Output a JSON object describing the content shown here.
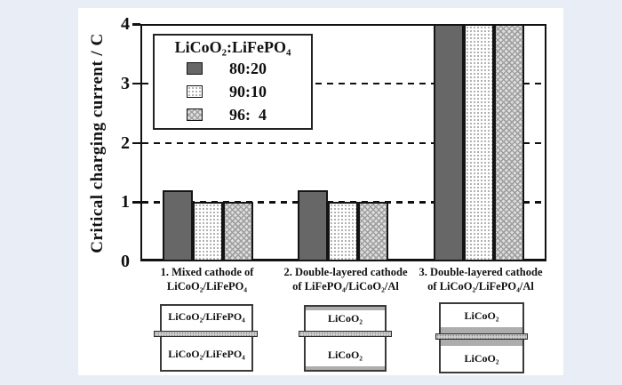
{
  "page": {
    "background_color": "#e9eef6",
    "panel_color": "#ffffff",
    "ink_color": "#111111"
  },
  "chart_data": {
    "type": "bar",
    "title": "",
    "ylabel": "Critical charging current / C",
    "xlabel": "",
    "ylim": [
      0,
      4
    ],
    "yticks": [
      0,
      1,
      2,
      3,
      4
    ],
    "gridlines_at": [
      1,
      2,
      3
    ],
    "grid_style": "dashed",
    "legend": {
      "position": "top-left-inside",
      "title": "LiCoO₂:LiFePO₄",
      "entries": [
        {
          "label": "80:20",
          "pattern": "solid-dark-gray",
          "color": "#676767"
        },
        {
          "label": "90:10",
          "pattern": "white-dotted",
          "color": "#ffffff"
        },
        {
          "label": "96:  4",
          "pattern": "gray-crosshatch",
          "color": "#bdbdbd"
        }
      ]
    },
    "categories": [
      {
        "line1": "1. Mixed cathode of",
        "line2": "LiCoO₂/LiFePO₄"
      },
      {
        "line1": "2. Double-layered cathode",
        "line2": "of LiFePO₄/LiCoO₂/Al"
      },
      {
        "line1": "3. Double-layered cathode",
        "line2": "of LiCoO₂/LiFePO₄/Al"
      }
    ],
    "series": [
      {
        "name": "80:20",
        "values": [
          1.2,
          1.2,
          4.0
        ]
      },
      {
        "name": "90:10",
        "values": [
          1.0,
          1.0,
          4.0
        ]
      },
      {
        "name": "96:  4",
        "values": [
          1.0,
          1.0,
          4.0
        ]
      }
    ]
  },
  "diagrams": {
    "items": [
      {
        "top_label": "LiCoO₂/LiFePO₄",
        "bottom_label": "LiCoO₂/LiFePO₄"
      },
      {
        "top_label": "LiCoO₂",
        "bottom_label": "LiCoO₂"
      },
      {
        "top_label": "LiCoO₂",
        "bottom_label": "LiCoO₂"
      }
    ]
  }
}
